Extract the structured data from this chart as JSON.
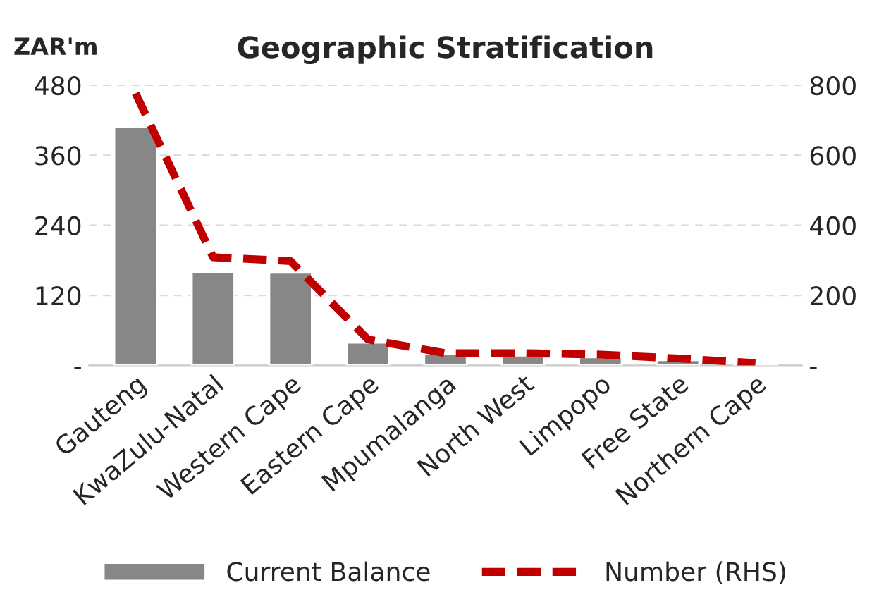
{
  "chart_data": {
    "type": "bar",
    "title": "Geographic Stratification",
    "ylabel": "ZAR'm",
    "categories": [
      "Gauteng",
      "KwaZulu-Natal",
      "Western Cape",
      "Eastern Cape",
      "Mpumalanga",
      "North West",
      "Limpopo",
      "Free State",
      "Northern Cape"
    ],
    "series": [
      {
        "name": "Current Balance",
        "color": "#878787",
        "values": [
          409,
          160,
          159,
          39,
          19,
          17,
          14,
          9,
          4
        ]
      },
      {
        "name": "Number (RHS)",
        "color": "#c00000",
        "type": "line",
        "axis": "y2",
        "line_style": "dashed",
        "values": [
          777,
          309,
          298,
          74,
          35,
          35,
          31,
          20,
          7
        ]
      }
    ],
    "ylim": [
      0,
      480
    ],
    "yticks": [
      {
        "value": 0,
        "label": "-"
      },
      120,
      240,
      360,
      480
    ],
    "y2lim": [
      0,
      800
    ],
    "y2ticks": [
      {
        "value": 0,
        "label": "-"
      },
      200,
      400,
      600,
      800
    ],
    "grid": "y",
    "legend": "bottom"
  }
}
